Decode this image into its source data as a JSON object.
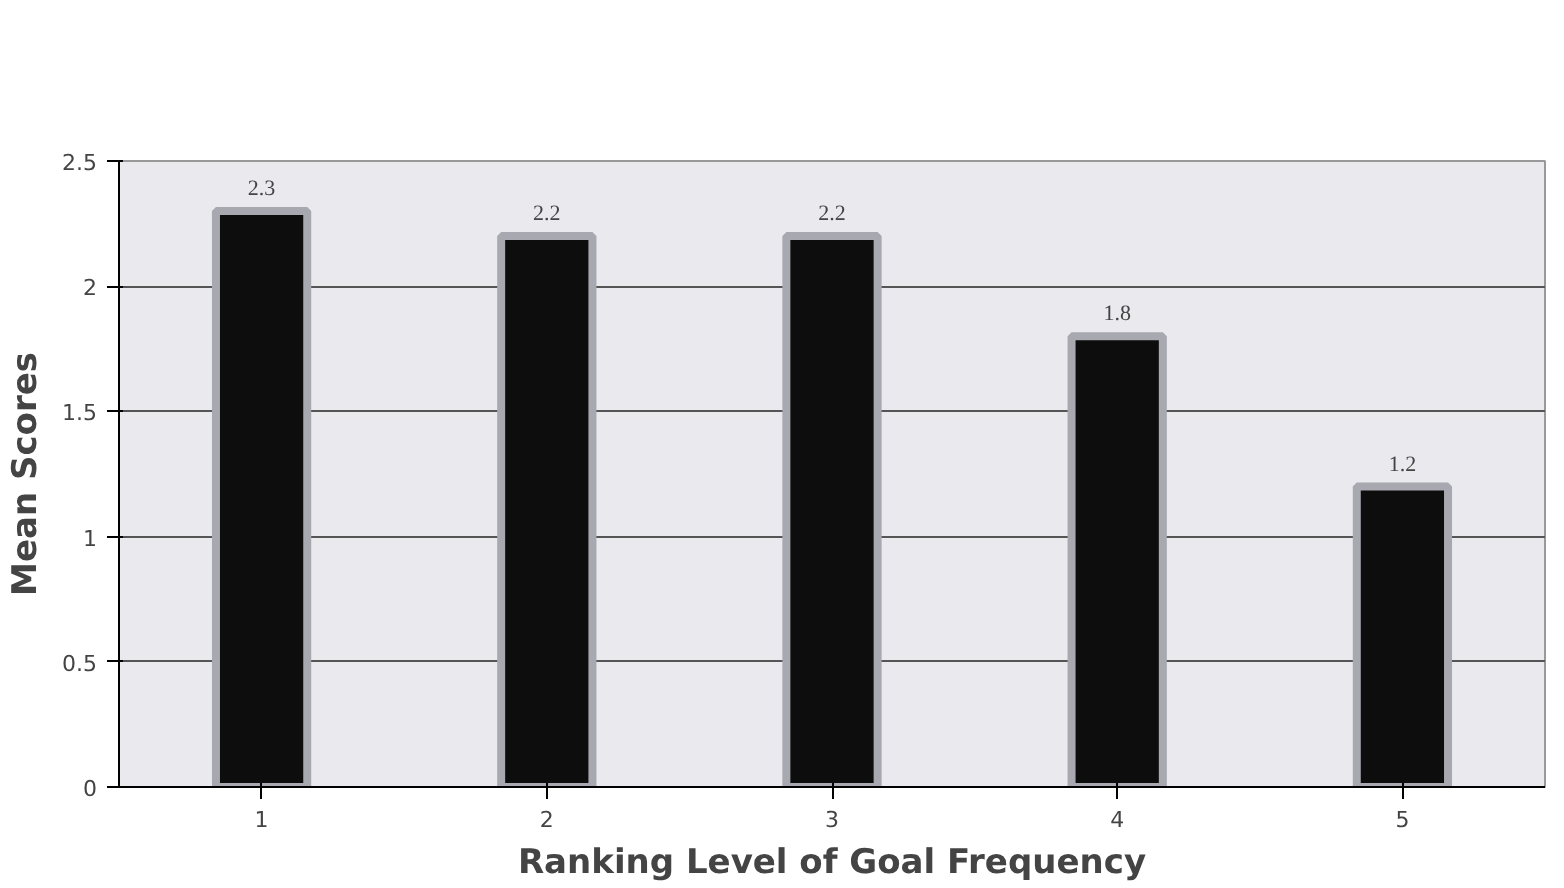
{
  "chart_data": {
    "type": "bar",
    "xlabel": "Ranking Level of Goal Frequency",
    "ylabel": "Mean Scores",
    "categories": [
      "1",
      "2",
      "3",
      "4",
      "5"
    ],
    "values": [
      2.3,
      2.2,
      2.2,
      1.8,
      1.2
    ],
    "color": "#0d0d0d",
    "ylim": [
      0,
      2.5
    ],
    "yticks": [
      0,
      0.5,
      1,
      1.5,
      2,
      2.5
    ],
    "grid": "y",
    "data_labels": true
  }
}
